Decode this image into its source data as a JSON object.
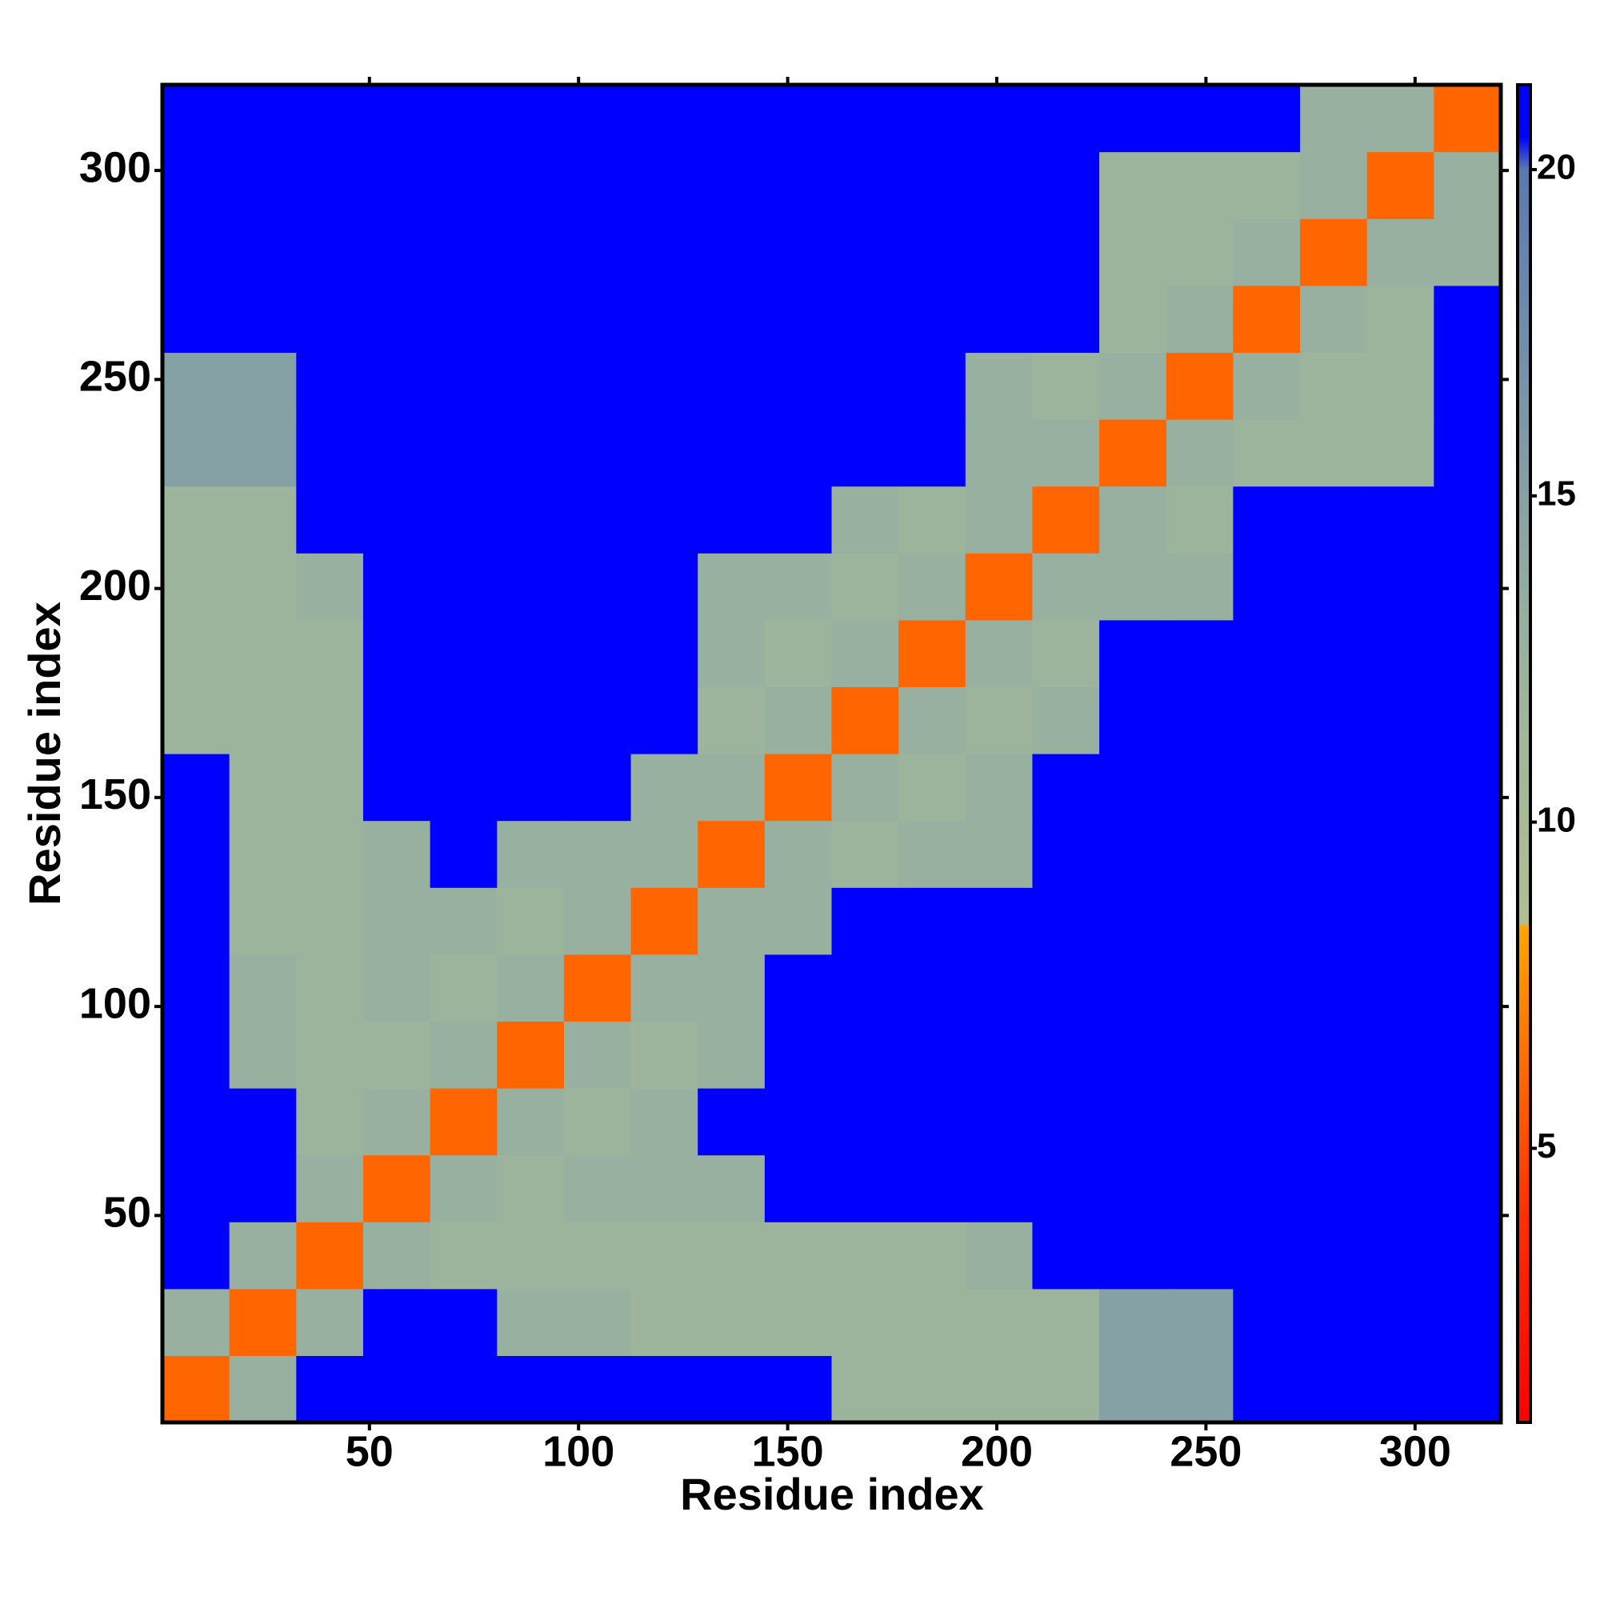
{
  "chart_data": {
    "type": "heatmap",
    "xlabel": "Residue index",
    "ylabel": "Residue index",
    "xlim": [
      0.5,
      320.5
    ],
    "ylim": [
      0.5,
      320.5
    ],
    "xticks": [
      50,
      100,
      150,
      200,
      250,
      300
    ],
    "yticks": [
      50,
      100,
      150,
      200,
      250,
      300
    ],
    "zlim": [
      0.8,
      21.3
    ],
    "zticks": [
      5,
      10,
      15,
      20
    ],
    "colorscale": [
      {
        "value": 0.8,
        "color": "#ff0000"
      },
      {
        "value": 4,
        "color": "#ff3000"
      },
      {
        "value": 8.4,
        "color": "#ffa500"
      },
      {
        "value": 8.45,
        "color": "#b0c090"
      },
      {
        "value": 13,
        "color": "#98b0a0"
      },
      {
        "value": 20,
        "color": "#5a7ab0"
      },
      {
        "value": 20.5,
        "color": "#0000ff"
      },
      {
        "value": 21.3,
        "color": "#0000ff"
      }
    ],
    "z": [
      [
        6,
        13,
        21,
        21,
        21,
        21,
        21,
        21,
        21,
        21,
        12,
        12,
        12,
        12,
        15,
        15,
        21,
        21,
        21,
        21
      ],
      [
        13,
        6,
        13,
        21,
        21,
        13,
        13,
        12,
        12,
        12,
        12,
        12,
        12,
        12,
        15,
        15,
        21,
        21,
        21,
        21
      ],
      [
        21,
        13,
        6,
        13,
        12,
        12,
        12,
        12,
        12,
        12,
        12,
        12,
        13,
        21,
        21,
        21,
        21,
        21,
        21,
        21
      ],
      [
        21,
        21,
        13,
        6,
        13,
        12,
        13,
        13,
        13,
        21,
        21,
        21,
        21,
        21,
        21,
        21,
        21,
        21,
        21,
        21
      ],
      [
        21,
        21,
        12,
        13,
        6,
        13,
        12,
        13,
        21,
        21,
        21,
        21,
        21,
        21,
        21,
        21,
        21,
        21,
        21,
        21
      ],
      [
        21,
        13,
        12,
        12,
        13,
        6,
        13,
        12,
        13,
        21,
        21,
        21,
        21,
        21,
        21,
        21,
        21,
        21,
        21,
        21
      ],
      [
        21,
        13,
        12,
        13,
        12,
        13,
        6,
        13,
        13,
        21,
        21,
        21,
        21,
        21,
        21,
        21,
        21,
        21,
        21,
        21
      ],
      [
        21,
        12,
        12,
        13,
        13,
        12,
        13,
        6,
        13,
        13,
        21,
        21,
        21,
        21,
        21,
        21,
        21,
        21,
        21,
        21
      ],
      [
        21,
        12,
        12,
        13,
        21,
        13,
        13,
        13,
        6,
        13,
        12,
        13,
        13,
        21,
        21,
        21,
        21,
        21,
        21,
        21
      ],
      [
        21,
        12,
        12,
        21,
        21,
        21,
        21,
        13,
        13,
        6,
        13,
        12,
        13,
        21,
        21,
        21,
        21,
        21,
        21,
        21
      ],
      [
        12,
        12,
        12,
        21,
        21,
        21,
        21,
        21,
        12,
        13,
        6,
        13,
        12,
        13,
        21,
        21,
        21,
        21,
        21,
        21
      ],
      [
        12,
        12,
        12,
        21,
        21,
        21,
        21,
        21,
        13,
        12,
        13,
        6,
        13,
        12,
        21,
        21,
        21,
        21,
        21,
        21
      ],
      [
        12,
        12,
        13,
        21,
        21,
        21,
        21,
        21,
        13,
        13,
        12,
        13,
        6,
        13,
        13,
        13,
        21,
        21,
        21,
        21
      ],
      [
        12,
        12,
        21,
        21,
        21,
        21,
        21,
        21,
        21,
        21,
        13,
        12,
        13,
        6,
        13,
        12,
        21,
        21,
        21,
        21
      ],
      [
        15,
        15,
        21,
        21,
        21,
        21,
        21,
        21,
        21,
        21,
        21,
        21,
        13,
        13,
        6,
        13,
        12,
        12,
        12,
        21
      ],
      [
        15,
        15,
        21,
        21,
        21,
        21,
        21,
        21,
        21,
        21,
        21,
        21,
        13,
        12,
        13,
        6,
        13,
        12,
        12,
        21
      ],
      [
        21,
        21,
        21,
        21,
        21,
        21,
        21,
        21,
        21,
        21,
        21,
        21,
        21,
        21,
        12,
        13,
        6,
        13,
        12,
        21
      ],
      [
        21,
        21,
        21,
        21,
        21,
        21,
        21,
        21,
        21,
        21,
        21,
        21,
        21,
        21,
        12,
        12,
        13,
        6,
        13,
        13
      ],
      [
        21,
        21,
        21,
        21,
        21,
        21,
        21,
        21,
        21,
        21,
        21,
        21,
        21,
        21,
        12,
        12,
        12,
        13,
        6,
        13
      ],
      [
        21,
        21,
        21,
        21,
        21,
        21,
        21,
        21,
        21,
        21,
        21,
        21,
        21,
        21,
        21,
        21,
        21,
        13,
        13,
        6
      ]
    ]
  }
}
